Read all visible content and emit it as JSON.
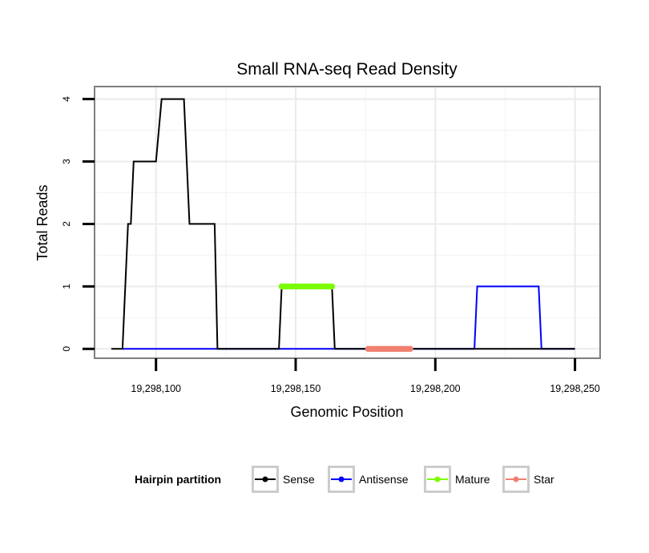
{
  "chart_data": {
    "type": "line",
    "title": "Small RNA-seq Read Density",
    "xlabel": "Genomic Position",
    "ylabel": "Total Reads",
    "xlim": [
      19298078,
      19298259
    ],
    "ylim": [
      -0.15,
      4.2
    ],
    "x_ticks": [
      {
        "value": 19298100,
        "label": "19,298,100"
      },
      {
        "value": 19298150,
        "label": "19,298,150"
      },
      {
        "value": 19298200,
        "label": "19,298,200"
      },
      {
        "value": 19298250,
        "label": "19,298,250"
      }
    ],
    "y_ticks": [
      {
        "value": 0,
        "label": "0"
      },
      {
        "value": 1,
        "label": "1"
      },
      {
        "value": 2,
        "label": "2"
      },
      {
        "value": 3,
        "label": "3"
      },
      {
        "value": 4,
        "label": "4"
      }
    ],
    "grid": true,
    "legend": {
      "title": "Hairpin partition",
      "position": "bottom",
      "entries": [
        "Sense",
        "Antisense",
        "Mature",
        "Star"
      ]
    },
    "series": [
      {
        "name": "Antisense",
        "color": "#0000ff",
        "points": [
          [
            19298088,
            0
          ],
          [
            19298122,
            0
          ],
          [
            19298144,
            0
          ],
          [
            19298164,
            0
          ],
          [
            19298214,
            0
          ],
          [
            19298215,
            1
          ],
          [
            19298237,
            1
          ],
          [
            19298238,
            0
          ],
          [
            19298250,
            0
          ]
        ]
      },
      {
        "name": "Sense",
        "color": "#000000",
        "points": [
          [
            19298084,
            0
          ],
          [
            19298088,
            0
          ],
          [
            19298090,
            2
          ],
          [
            19298091,
            2
          ],
          [
            19298092,
            3
          ],
          [
            19298100,
            3
          ],
          [
            19298102,
            4
          ],
          [
            19298110,
            4
          ],
          [
            19298112,
            2
          ],
          [
            19298121,
            2
          ],
          [
            19298122,
            0
          ],
          [
            19298144,
            0
          ],
          [
            19298145,
            1
          ],
          [
            19298163,
            1
          ],
          [
            19298164,
            0
          ],
          [
            19298250,
            0
          ]
        ]
      },
      {
        "name": "Mature",
        "color": "#7cfc00",
        "points": [
          [
            19298145,
            1
          ],
          [
            19298163,
            1
          ]
        ]
      },
      {
        "name": "Star",
        "color": "#f08070",
        "points": [
          [
            19298176,
            0
          ],
          [
            19298191,
            0
          ]
        ]
      }
    ]
  }
}
